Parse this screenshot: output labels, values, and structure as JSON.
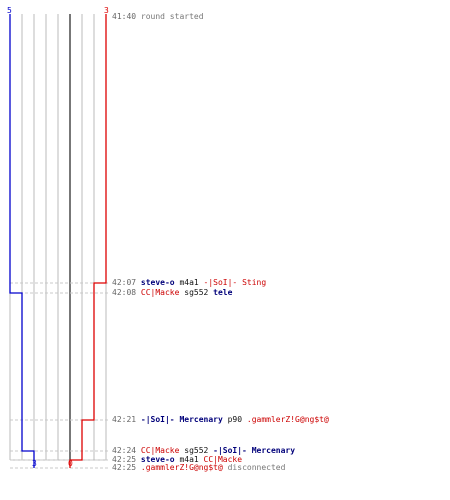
{
  "colors": {
    "blue_team": "#0000cc",
    "red_team": "#dd0000",
    "grid": "#bbbbbb",
    "axis": "#777777"
  },
  "counters": {
    "blue_start": "5",
    "red_start": "3",
    "blue_end": "3",
    "red_end": "0"
  },
  "events": [
    {
      "time": "41:40",
      "parts": [
        {
          "text": "round started",
          "style": "greyt"
        }
      ]
    },
    {
      "time": "42:07",
      "parts": [
        {
          "text": "steve-o",
          "style": "blue"
        },
        {
          "text": " m4a1 ",
          "style": "plain"
        },
        {
          "text": "-|SoI|- Sting",
          "style": "red"
        }
      ]
    },
    {
      "time": "42:08",
      "parts": [
        {
          "text": "CC|Macke",
          "style": "red"
        },
        {
          "text": " sg552 ",
          "style": "plain"
        },
        {
          "text": "tele",
          "style": "blue"
        }
      ]
    },
    {
      "time": "42:21",
      "parts": [
        {
          "text": "-|SoI|- Mercenary",
          "style": "blue"
        },
        {
          "text": " p90 ",
          "style": "plain"
        },
        {
          "text": ".gammlerZ!G@ng$t@",
          "style": "red"
        }
      ]
    },
    {
      "time": "42:24",
      "parts": [
        {
          "text": "CC|Macke",
          "style": "red"
        },
        {
          "text": " sg552 ",
          "style": "plain"
        },
        {
          "text": "-|SoI|- Mercenary",
          "style": "blue"
        }
      ]
    },
    {
      "time": "42:25",
      "parts": [
        {
          "text": "steve-o",
          "style": "blue"
        },
        {
          "text": " m4a1 ",
          "style": "plain"
        },
        {
          "text": "CC|Macke",
          "style": "red"
        }
      ]
    },
    {
      "time": "42:25",
      "parts": [
        {
          "text": ".gammlerZ!G@ng$t@",
          "style": "red"
        },
        {
          "text": " disconnected",
          "style": "greyt"
        }
      ]
    }
  ],
  "steps": {
    "blue": [
      {
        "count": 5,
        "event": 0
      },
      {
        "count": 4,
        "event": 2
      },
      {
        "count": 3,
        "event": 4
      },
      {
        "count": 3,
        "event": 6
      }
    ],
    "red": [
      {
        "count": 3,
        "event": 0
      },
      {
        "count": 2,
        "event": 1
      },
      {
        "count": 1,
        "event": 3
      },
      {
        "count": 0,
        "event": 5
      },
      {
        "count": 0,
        "event": 6
      }
    ]
  }
}
